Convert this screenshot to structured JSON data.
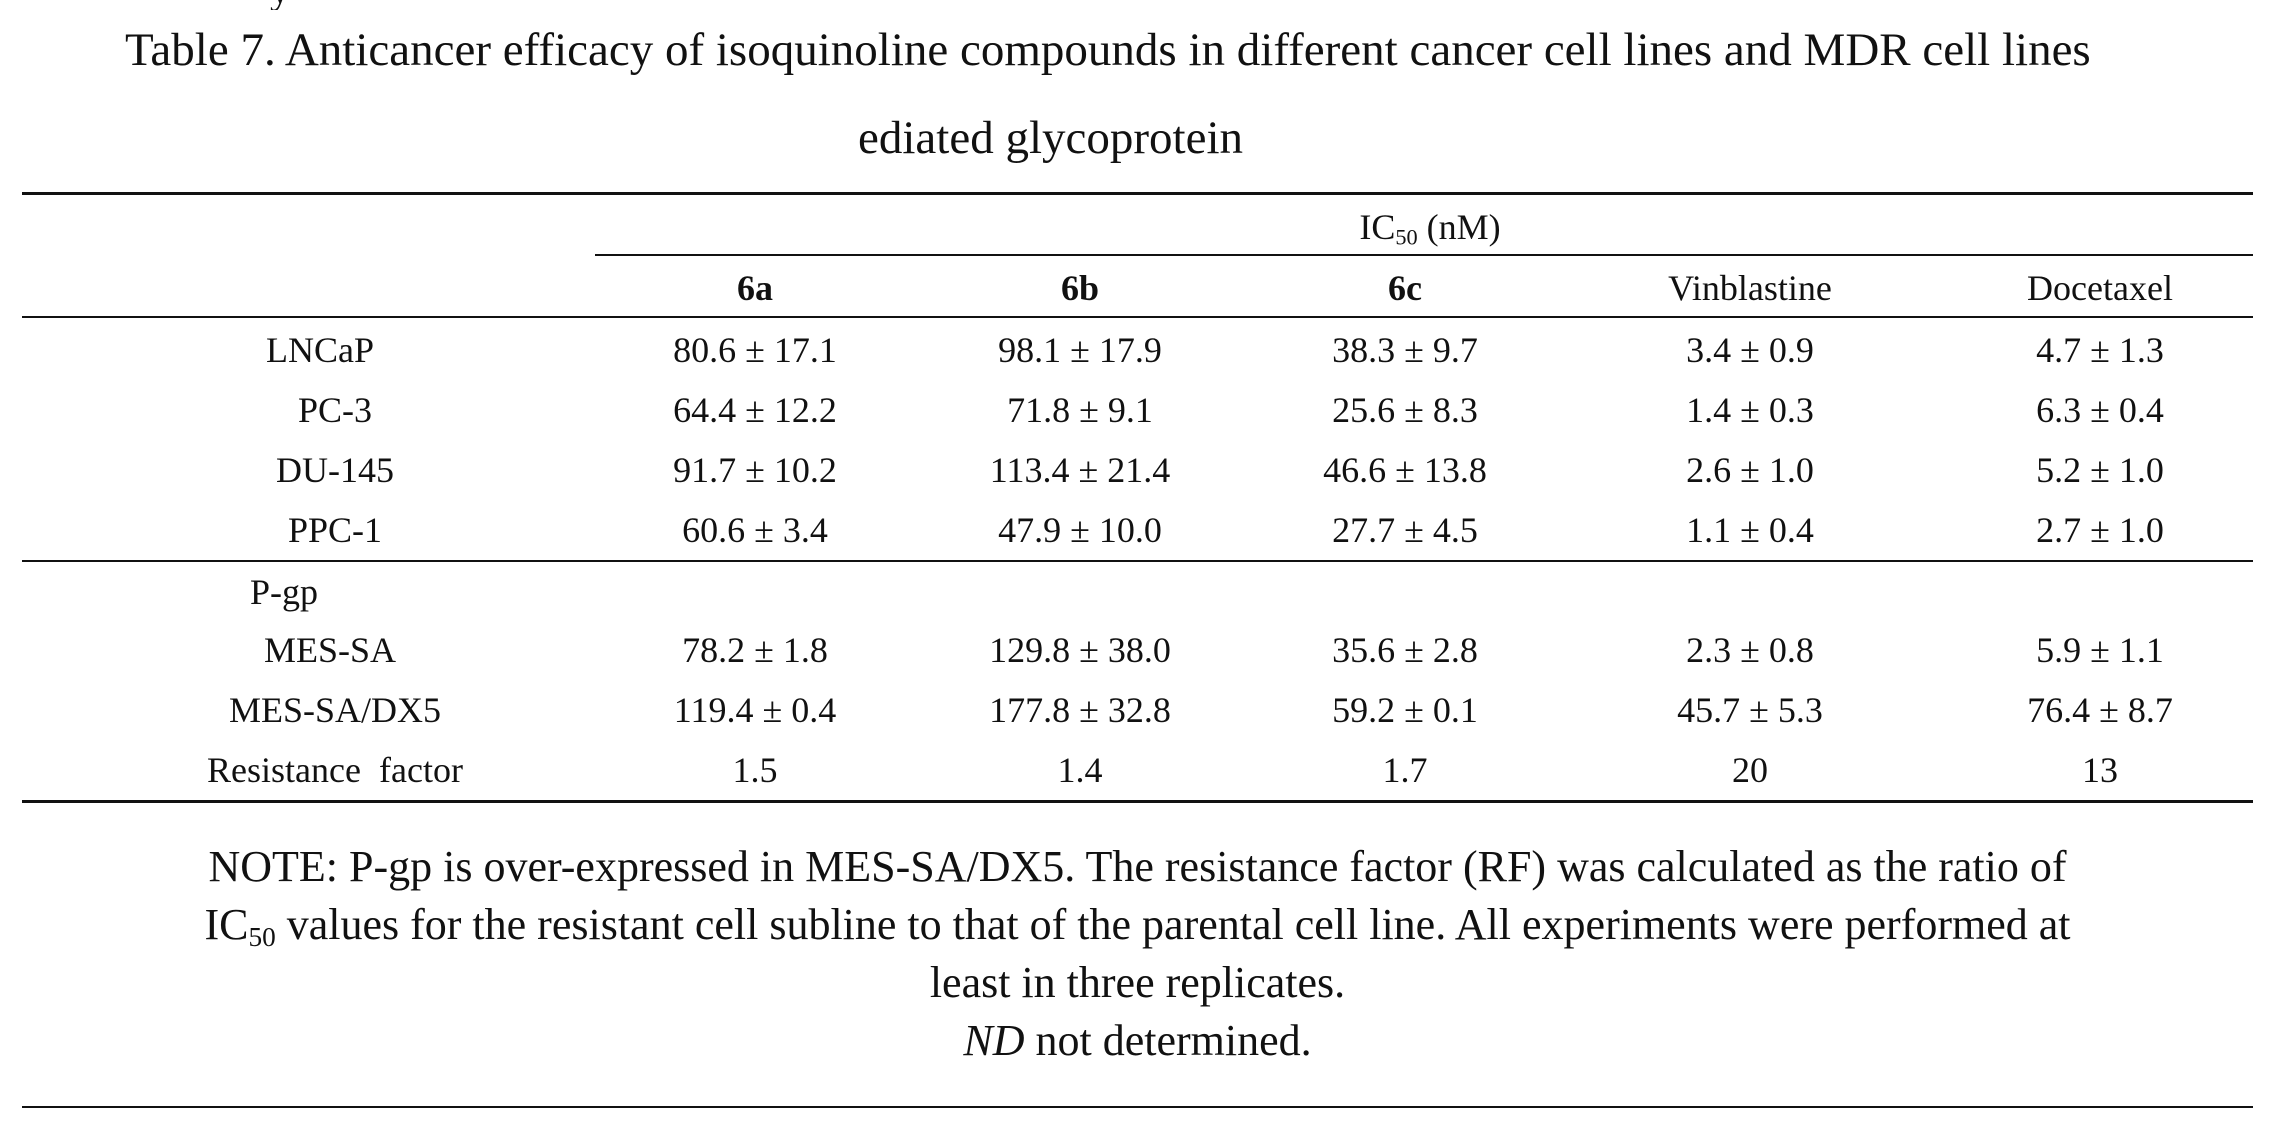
{
  "caption": {
    "line1": "Table 7. Anticancer efficacy of isoquinoline compounds in different cancer cell lines and MDR cell lines",
    "line2": "ediated glycoprotein"
  },
  "table": {
    "group_header_prefix": "IC",
    "group_header_sub": "50",
    "group_header_suffix": " (nM)",
    "columns": [
      "6a",
      "6b",
      "6c",
      "Vinblastine",
      "Docetaxel"
    ],
    "rows_section1": [
      {
        "label": "LNCaP",
        "values": [
          "80.6 ± 17.1",
          "98.1 ± 17.9",
          "38.3 ± 9.7",
          "3.4 ± 0.9",
          "4.7 ± 1.3"
        ]
      },
      {
        "label": "PC-3",
        "values": [
          "64.4 ± 12.2",
          "71.8 ± 9.1",
          "25.6 ± 8.3",
          "1.4 ± 0.3",
          "6.3 ± 0.4"
        ]
      },
      {
        "label": "DU-145",
        "values": [
          "91.7 ± 10.2",
          "113.4 ± 21.4",
          "46.6 ± 13.8",
          "2.6 ± 1.0",
          "5.2 ± 1.0"
        ]
      },
      {
        "label": "PPC-1",
        "values": [
          "60.6 ± 3.4",
          "47.9 ± 10.0",
          "27.7 ± 4.5",
          "1.1 ± 0.4",
          "2.7 ± 1.0"
        ]
      }
    ],
    "section2_label": "P-gp",
    "rows_section2": [
      {
        "label": "MES-SA",
        "values": [
          "78.2 ± 1.8",
          "129.8 ± 38.0",
          "35.6 ± 2.8",
          "2.3 ± 0.8",
          "5.9 ± 1.1"
        ]
      },
      {
        "label": "MES-SA/DX5",
        "values": [
          "119.4 ± 0.4",
          "177.8 ± 32.8",
          "59.2 ± 0.1",
          "45.7 ± 5.3",
          "76.4 ± 8.7"
        ]
      },
      {
        "label": "Resistance  factor",
        "values": [
          "1.5",
          "1.4",
          "1.7",
          "20",
          "13"
        ]
      }
    ]
  },
  "note": {
    "line1": "NOTE: P-gp is over-expressed in MES-SA/DX5. The resistance factor (RF) was calculated as the ratio of",
    "line2_prefix": "IC",
    "line2_sub": "50",
    "line2_suffix": " values for the resistant cell subline to that of the parental cell line. All experiments were performed at",
    "line3": "least in three replicates.",
    "nd_abbrev": "ND",
    "nd_text": " not determined."
  }
}
